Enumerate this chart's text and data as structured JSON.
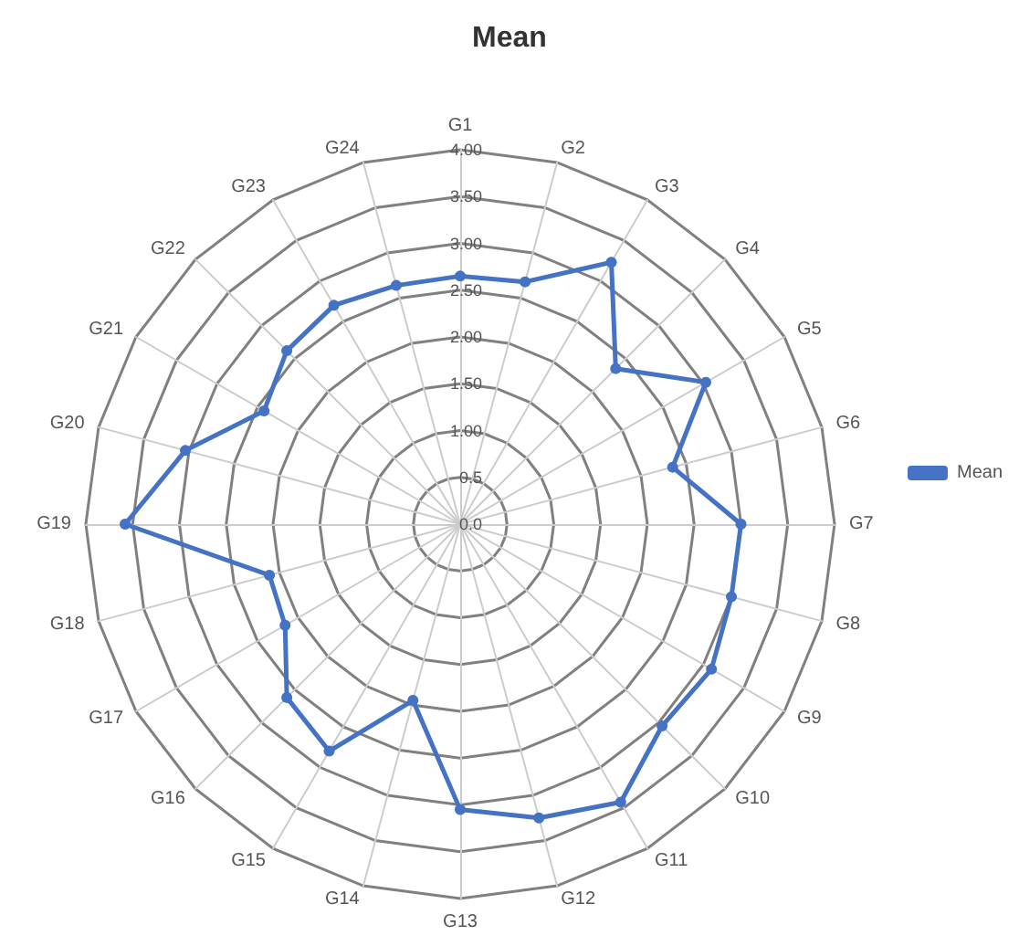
{
  "chart_data": {
    "type": "radar",
    "title": "Mean",
    "categories": [
      "G1",
      "G2",
      "G3",
      "G4",
      "G5",
      "G6",
      "G7",
      "G8",
      "G9",
      "G10",
      "G11",
      "G12",
      "G13",
      "G14",
      "G15",
      "G16",
      "G17",
      "G18",
      "G19",
      "G20",
      "G21",
      "G22",
      "G23",
      "G24"
    ],
    "series": [
      {
        "name": "Mean",
        "color": "#4472c4",
        "values": [
          2.65,
          2.68,
          3.23,
          2.35,
          3.03,
          2.35,
          3.0,
          3.0,
          3.1,
          3.05,
          3.43,
          3.25,
          3.05,
          1.95,
          2.8,
          2.62,
          2.16,
          2.11,
          3.58,
          3.04,
          2.42,
          2.62,
          2.7,
          2.64
        ]
      }
    ],
    "ylim": [
      0,
      4
    ],
    "yticks": [
      {
        "value": 0,
        "label": "0.0"
      },
      {
        "value": 0.5,
        "label": "0.5"
      },
      {
        "value": 1,
        "label": "1.00"
      },
      {
        "value": 1.5,
        "label": "1.50"
      },
      {
        "value": 2,
        "label": "2.00"
      },
      {
        "value": 2.5,
        "label": "2.50"
      },
      {
        "value": 3,
        "label": "3.00"
      },
      {
        "value": 3.5,
        "label": "3.50"
      },
      {
        "value": 4,
        "label": "4.00"
      }
    ],
    "marker": "circle",
    "legend": "right",
    "grid": true
  }
}
